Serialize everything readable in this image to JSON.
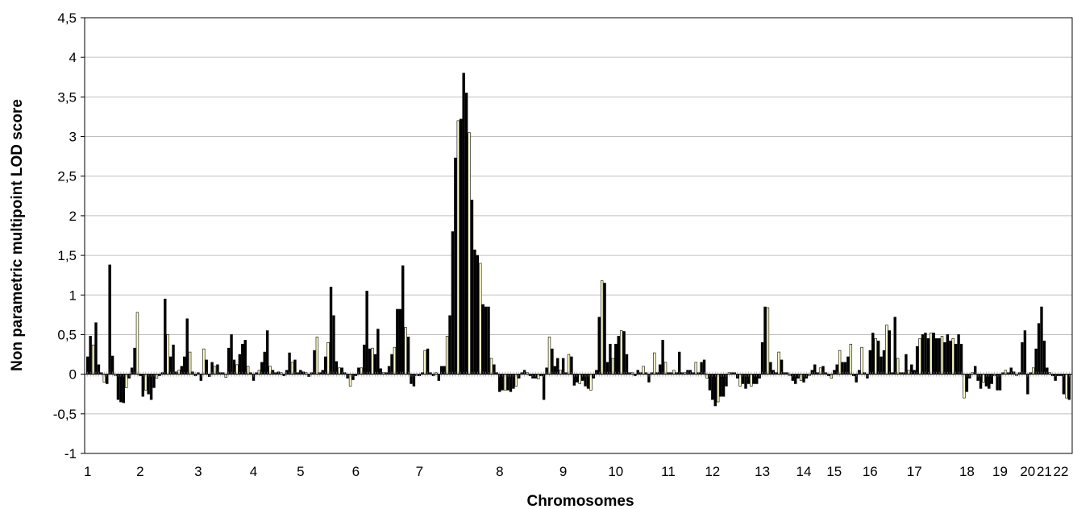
{
  "chart_data": {
    "type": "bar",
    "title": "",
    "xlabel": "Chromosomes",
    "ylabel": "Non parametric multipoint LOD score",
    "ylim": [
      -1,
      4.5
    ],
    "yticks": [
      4.5,
      4,
      3.5,
      3,
      2.5,
      2,
      1.5,
      1,
      0.5,
      0,
      -0.5,
      -1
    ],
    "ytick_labels": [
      "4,5",
      "4",
      "3,5",
      "3",
      "2,5",
      "2",
      "1,5",
      "1",
      "0,5",
      "0",
      "-0,5",
      "-1"
    ],
    "grid": true,
    "legend": "none",
    "colors": {
      "dark": "#000000",
      "light": "#ffffcc",
      "grid": "#c0c0c0",
      "outline": "#000000"
    },
    "chromosomes": [
      {
        "label": "1",
        "values": [
          0.22,
          0.48,
          0.37,
          0.65,
          0.12,
          0.02,
          -0.1,
          -0.12,
          1.38,
          0.23,
          -0.02,
          -0.32,
          -0.35,
          -0.36,
          -0.17,
          -0.05,
          0.08,
          0.33,
          0.78
        ]
      },
      {
        "label": "2",
        "values": [
          -0.02,
          -0.28,
          -0.2,
          -0.25,
          -0.32,
          -0.17,
          -0.05,
          -0.02,
          0.02,
          0.95,
          0.5,
          0.22,
          0.37,
          0.03,
          0.05,
          0.1,
          0.22,
          0.7,
          0.28,
          0.03,
          -0.02
        ]
      },
      {
        "label": "3",
        "values": [
          0.02,
          -0.08,
          0.32,
          0.18,
          -0.03,
          0.15,
          0.1,
          0.12,
          0.02,
          0.02,
          -0.04,
          0.33,
          0.5,
          0.18,
          0.12,
          0.25,
          0.38,
          0.43,
          0.1,
          0.02
        ]
      },
      {
        "label": "4",
        "values": [
          -0.08,
          0.02,
          0.05,
          0.15,
          0.28,
          0.55,
          0.1,
          0.05,
          0.02,
          0.03,
          0.02,
          -0.02,
          0.05,
          0.27,
          0.15,
          0.18,
          0.02
        ]
      },
      {
        "label": "5",
        "values": [
          0.05,
          0.03,
          0.02,
          -0.03,
          0.02,
          0.3,
          0.47,
          0.02,
          0.05,
          0.22,
          0.4,
          1.1,
          0.74,
          0.16,
          0.08,
          0.08,
          0.02,
          -0.05,
          -0.15,
          -0.07
        ]
      },
      {
        "label": "6",
        "values": [
          -0.02,
          0.08,
          0.08,
          0.37,
          1.05,
          0.32,
          0.33,
          0.25,
          0.57,
          0.07,
          0.02,
          0.02,
          0.1,
          0.25,
          0.34,
          0.82,
          0.82,
          1.37,
          0.59,
          0.47,
          -0.12,
          -0.15,
          -0.02
        ]
      },
      {
        "label": "7",
        "values": [
          -0.02,
          0.02,
          0.3,
          0.32,
          0.02,
          -0.02,
          0.02,
          -0.08,
          0.1,
          0.1,
          0.48,
          0.74,
          1.8,
          2.73,
          3.2,
          3.22,
          3.8,
          3.55,
          3.05,
          2.2,
          1.57,
          1.5,
          1.4,
          0.88,
          0.85,
          0.85,
          0.2,
          0.12,
          0.02
        ]
      },
      {
        "label": "8",
        "values": [
          -0.22,
          -0.2,
          -0.2,
          -0.2,
          -0.22,
          -0.18,
          -0.15,
          -0.05,
          0.02,
          0.05,
          0.02,
          -0.02,
          -0.05,
          -0.05,
          -0.06,
          -0.02,
          -0.32,
          0.08,
          0.47,
          0.32,
          0.1,
          0.2,
          0.05
        ]
      },
      {
        "label": "9",
        "values": [
          0.2,
          0.02,
          0.25,
          0.22,
          -0.14,
          -0.1,
          -0.12,
          -0.08,
          -0.15,
          -0.18,
          -0.2,
          -0.05,
          0.05,
          0.72,
          1.18,
          1.15,
          0.15,
          0.38,
          0.2
        ]
      },
      {
        "label": "10",
        "values": [
          0.38,
          0.48,
          0.55,
          0.54,
          0.25,
          0.02,
          0.02,
          -0.02,
          0.05,
          0.02,
          0.1,
          0.02,
          -0.1,
          0.02,
          0.27,
          0.02,
          0.12,
          0.43,
          0.15
        ]
      },
      {
        "label": "11",
        "values": [
          0.02,
          0.02,
          0.05,
          0.02,
          0.28,
          0.02,
          0.02,
          0.05,
          0.05,
          0.02,
          0.15,
          0.02,
          0.15,
          0.18,
          -0.05,
          -0.2
        ]
      },
      {
        "label": "12",
        "values": [
          -0.32,
          -0.4,
          -0.35,
          -0.28,
          -0.28,
          -0.15,
          0.02,
          0.02,
          0.02,
          -0.05,
          -0.15,
          -0.12,
          -0.18,
          -0.12,
          -0.15,
          -0.12,
          -0.12,
          -0.05
        ]
      },
      {
        "label": "13",
        "values": [
          0.4,
          0.85,
          0.84,
          0.15,
          0.05,
          0.02,
          0.28,
          0.18,
          0.02,
          0.02,
          -0.02,
          -0.08,
          -0.12,
          -0.05,
          -0.08
        ]
      },
      {
        "label": "14",
        "values": [
          -0.1,
          -0.05,
          -0.02,
          0.05,
          0.12,
          0.02,
          0.08,
          0.1,
          0.02,
          -0.02,
          -0.05
        ]
      },
      {
        "label": "15",
        "values": [
          0.05,
          0.12,
          0.3,
          0.15,
          0.15,
          0.22,
          0.38,
          -0.02,
          -0.1,
          0.05,
          0.34,
          0.02,
          -0.05
        ]
      },
      {
        "label": "16",
        "values": [
          0.3,
          0.52,
          0.45,
          0.42,
          0.22,
          0.3,
          0.62,
          0.55,
          0.02,
          0.72,
          0.2,
          0.02,
          0.02,
          0.25,
          0.05,
          0.12
        ]
      },
      {
        "label": "17",
        "values": [
          0.05,
          0.35,
          0.45,
          0.5,
          0.52,
          0.45,
          0.52,
          0.52,
          0.45,
          0.45,
          0.48,
          0.4,
          0.5,
          0.42,
          0.45,
          0.38,
          0.5,
          0.38,
          -0.3
        ]
      },
      {
        "label": "18",
        "values": [
          -0.22,
          -0.05,
          0.02,
          0.1,
          -0.08,
          -0.18,
          -0.1,
          -0.15,
          -0.18,
          -0.12,
          -0.02,
          -0.2
        ]
      },
      {
        "label": "19",
        "values": [
          -0.2,
          0.02,
          0.05,
          0.02,
          0.08,
          0.03,
          -0.02,
          0.02,
          0.4,
          0.55
        ]
      },
      {
        "label": "20",
        "values": [
          -0.25,
          0.02,
          0.08,
          0.32,
          0.64,
          0.85
        ]
      },
      {
        "label": "21",
        "values": [
          0.42,
          0.08,
          0.02,
          -0.02,
          -0.08,
          -0.02
        ]
      },
      {
        "label": "22",
        "values": [
          -0.02,
          -0.25,
          -0.3,
          -0.32
        ]
      }
    ]
  }
}
